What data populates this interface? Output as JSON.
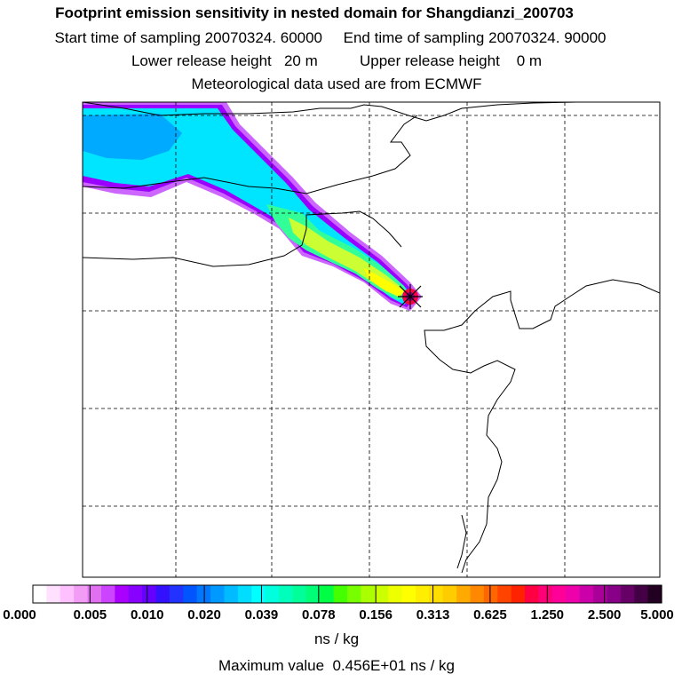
{
  "header": {
    "title": "Footprint emission sensitivity in nested domain for Shangdianzi_200703",
    "start_label": "Start time of sampling",
    "start_value": "20070324. 60000",
    "end_label": "End time of sampling",
    "end_value": "20070324. 90000",
    "lower_label": "Lower release height",
    "lower_value": "20 m",
    "upper_label": "Upper release height",
    "upper_value": "0 m",
    "met_line": "Meteorological data used are from ECMWF"
  },
  "map": {
    "receptor_marker": "star-marker",
    "plume_colors": [
      "#cc66ff",
      "#9900ff",
      "#00ccff",
      "#00ffee",
      "#33ff99",
      "#ccff33",
      "#ffff00"
    ]
  },
  "colorbar": {
    "ticks": [
      "0.000",
      "0.005",
      "0.010",
      "0.020",
      "0.039",
      "0.078",
      "0.156",
      "0.313",
      "0.625",
      "1.250",
      "2.500",
      "5.000"
    ],
    "colors": [
      "#ffffff",
      "#ffe0ff",
      "#ffc0ff",
      "#f29cf5",
      "#e070f0",
      "#cc44ff",
      "#aa00ff",
      "#8800ff",
      "#6600ff",
      "#3311ff",
      "#2233ff",
      "#0055ff",
      "#0077ff",
      "#0099ff",
      "#00bbff",
      "#00ddff",
      "#00ffff",
      "#00ffdd",
      "#00ffbb",
      "#00ff99",
      "#00ff77",
      "#00ff44",
      "#44ff00",
      "#77ff00",
      "#aaff00",
      "#ccff00",
      "#eeff00",
      "#ffff00",
      "#ffee00",
      "#ffdd00",
      "#ffcc00",
      "#ffaa00",
      "#ff8800",
      "#ff6600",
      "#ff4400",
      "#ff2200",
      "#ff0044",
      "#ff0077",
      "#ff0099",
      "#ee00aa",
      "#cc00aa",
      "#aa0099",
      "#880088",
      "#660066",
      "#440044",
      "#220022"
    ],
    "unit": "ns / kg",
    "max_label": "Maximum value",
    "max_value": "0.456E+01 ns / kg"
  }
}
